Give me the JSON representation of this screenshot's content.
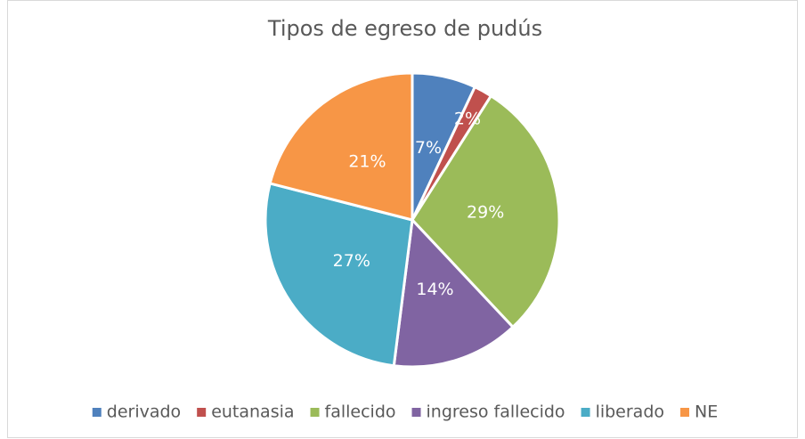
{
  "chart_data": {
    "type": "pie",
    "title": "Tipos de egreso de pudús",
    "categories": [
      "derivado",
      "eutanasia",
      "fallecido",
      "ingreso fallecido",
      "liberado",
      "NE"
    ],
    "values": [
      7,
      2,
      29,
      14,
      27,
      21
    ],
    "value_labels": [
      "7%",
      "2%",
      "29%",
      "14%",
      "27%",
      "21%"
    ],
    "colors": [
      "#4f81bd",
      "#c0504d",
      "#9bbb59",
      "#8064a2",
      "#4bacc6",
      "#f79646"
    ],
    "legend": "bottom"
  }
}
